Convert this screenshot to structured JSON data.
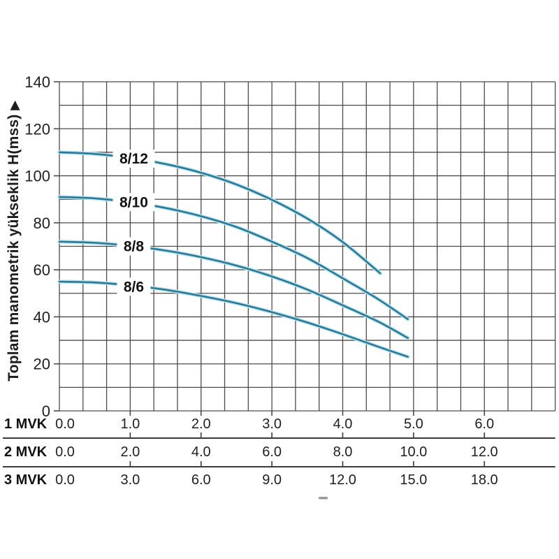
{
  "chart_data": {
    "type": "line",
    "title": "",
    "ylabel": "Toplam manometrik yükseklik H(mss)",
    "ylabel_arrow": "▶",
    "y_axis": {
      "min": 0,
      "max": 140,
      "tick_step": 20,
      "grid_step": 10,
      "ticks": [
        "0",
        "20",
        "40",
        "60",
        "80",
        "100",
        "120",
        "140"
      ]
    },
    "x_axis": {
      "min": 0,
      "max": 7,
      "gridlines_per_unit": 3
    },
    "x_scales": [
      {
        "name": "1 MVK",
        "ticks": [
          "0.0",
          "1.0",
          "2.0",
          "3.0",
          "4.0",
          "5.0",
          "6.0"
        ]
      },
      {
        "name": "2 MVK",
        "ticks": [
          "0.0",
          "2.0",
          "4.0",
          "6.0",
          "8.0",
          "10.0",
          "12.0"
        ]
      },
      {
        "name": "3 MVK",
        "ticks": [
          "0.0",
          "3.0",
          "6.0",
          "9.0",
          "12.0",
          "15.0",
          "18.0"
        ]
      }
    ],
    "series": [
      {
        "name": "8/12",
        "label_at": {
          "x": 1.05,
          "y": 107.3
        },
        "points": [
          [
            0,
            110
          ],
          [
            0.5,
            109.3
          ],
          [
            1,
            107.6
          ],
          [
            1.5,
            105
          ],
          [
            2,
            101.3
          ],
          [
            2.5,
            96.3
          ],
          [
            3,
            89.8
          ],
          [
            3.5,
            81.8
          ],
          [
            4,
            71.8
          ],
          [
            4.53,
            58.5
          ]
        ]
      },
      {
        "name": "8/10",
        "label_at": {
          "x": 1.05,
          "y": 88.8
        },
        "points": [
          [
            0,
            91
          ],
          [
            0.5,
            90.4
          ],
          [
            1,
            88.8
          ],
          [
            1.5,
            86.3
          ],
          [
            2,
            82.8
          ],
          [
            2.5,
            78.2
          ],
          [
            3,
            72
          ],
          [
            3.5,
            65
          ],
          [
            4,
            56.4
          ],
          [
            4.5,
            47.5
          ],
          [
            4.92,
            39
          ]
        ]
      },
      {
        "name": "8/8",
        "label_at": {
          "x": 1.05,
          "y": 70
        },
        "points": [
          [
            0,
            72
          ],
          [
            0.5,
            71.5
          ],
          [
            1,
            70.2
          ],
          [
            1.5,
            68.2
          ],
          [
            2,
            65.4
          ],
          [
            2.5,
            61.8
          ],
          [
            3,
            57.2
          ],
          [
            3.5,
            51.6
          ],
          [
            4,
            44.9
          ],
          [
            4.5,
            38
          ],
          [
            4.92,
            31
          ]
        ]
      },
      {
        "name": "8/6",
        "label_at": {
          "x": 1.05,
          "y": 52.8
        },
        "points": [
          [
            0,
            55
          ],
          [
            0.5,
            54.6
          ],
          [
            1,
            53.4
          ],
          [
            1.5,
            51.5
          ],
          [
            2,
            48.9
          ],
          [
            2.5,
            45.8
          ],
          [
            3,
            42
          ],
          [
            3.5,
            37.6
          ],
          [
            4,
            32.6
          ],
          [
            4.5,
            27.3
          ],
          [
            4.92,
            23
          ]
        ]
      }
    ],
    "legend": "labels drawn on curves",
    "grid": true,
    "colors": {
      "curve": "#2a7a97",
      "curve_halo": "#bde4ef",
      "grid": "#4b4b4b",
      "text": "#212121",
      "separator": "#3a3a3a",
      "dash_artifact": "#9a9a9a"
    }
  }
}
